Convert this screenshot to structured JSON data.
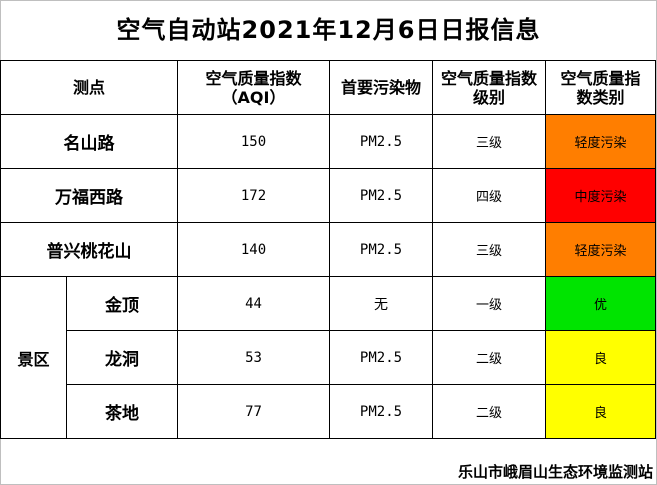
{
  "title": "空气自动站2021年12月6日日报信息",
  "headers": {
    "station": "测点",
    "aqi": "空气质量指数（AQI）",
    "pollutant": "首要污染物",
    "level": "空气质量指数级别",
    "category": "空气质量指数类别"
  },
  "scenic_label": "景区",
  "rows": [
    {
      "name": "名山路",
      "aqi": "150",
      "pollutant": "PM2.5",
      "level": "三级",
      "category": "轻度污染",
      "color": "#ff7e00"
    },
    {
      "name": "万福西路",
      "aqi": "172",
      "pollutant": "PM2.5",
      "level": "四级",
      "category": "中度污染",
      "color": "#ff0000"
    },
    {
      "name": "普兴桃花山",
      "aqi": "140",
      "pollutant": "PM2.5",
      "level": "三级",
      "category": "轻度污染",
      "color": "#ff7e00"
    },
    {
      "name": "金顶",
      "aqi": "44",
      "pollutant": "无",
      "level": "一级",
      "category": "优",
      "color": "#00e400"
    },
    {
      "name": "龙洞",
      "aqi": "53",
      "pollutant": "PM2.5",
      "level": "二级",
      "category": "良",
      "color": "#ffff00"
    },
    {
      "name": "茶地",
      "aqi": "77",
      "pollutant": "PM2.5",
      "level": "二级",
      "category": "良",
      "color": "#ffff00"
    }
  ],
  "footer": "乐山市峨眉山生态环境监测站"
}
